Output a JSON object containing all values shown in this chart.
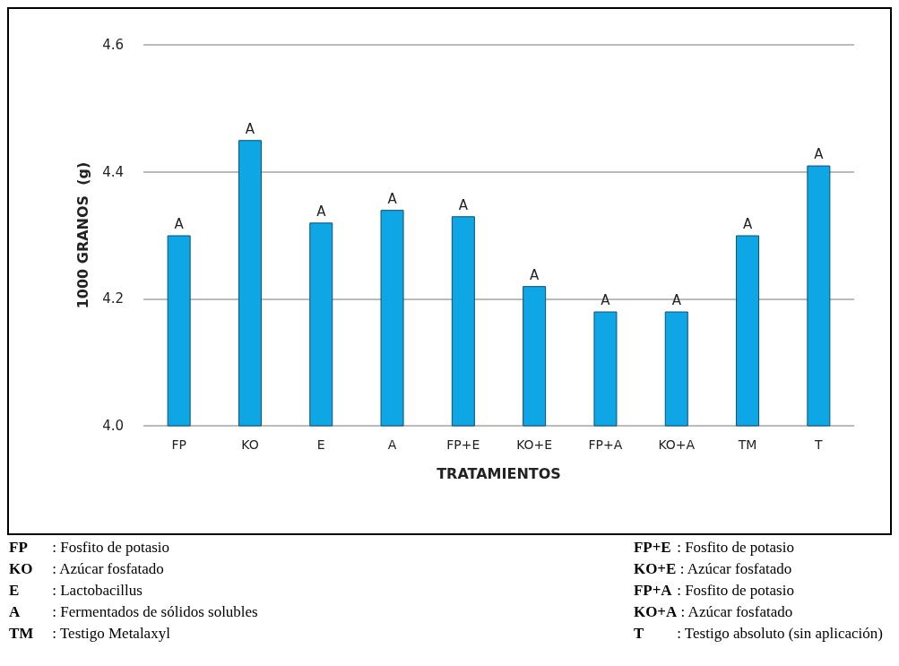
{
  "chart_data": {
    "type": "bar",
    "xlabel": "TRATAMIENTOS",
    "ylabel": "1000 GRANOS  (g)",
    "categories": [
      "FP",
      "KO",
      "E",
      "A",
      "FP+E",
      "KO+E",
      "FP+A",
      "KO+A",
      "TM",
      "T"
    ],
    "values": [
      4.3,
      4.45,
      4.32,
      4.34,
      4.33,
      4.22,
      4.18,
      4.18,
      4.3,
      4.41
    ],
    "value_labels": [
      "A",
      "A",
      "A",
      "A",
      "A",
      "A",
      "A",
      "A",
      "A",
      "A"
    ],
    "color": "#0fa6e6",
    "ylim": [
      4.0,
      4.6
    ],
    "yticks": [
      {
        "value": 4.0,
        "label": "4.0"
      },
      {
        "value": 4.2,
        "label": "4.2"
      },
      {
        "value": 4.4,
        "label": "4.4"
      },
      {
        "value": 4.6,
        "label": "4.6"
      }
    ],
    "grid": "y",
    "annotations": [
      "FP : Fosfito de potasio",
      "KO : Azúcar fosfatado",
      "E : Lactobacillus",
      "A : Fermentados de sólidos solubles",
      "TM : Testigo Metalaxyl",
      "FP+E : Fosfito de potasio",
      "KO+E : Azúcar fosfatado",
      "FP+A : Fosfito de potasio",
      "KO+A : Azúcar fosfatado",
      "T : Testigo absoluto (sin aplicación)"
    ]
  }
}
